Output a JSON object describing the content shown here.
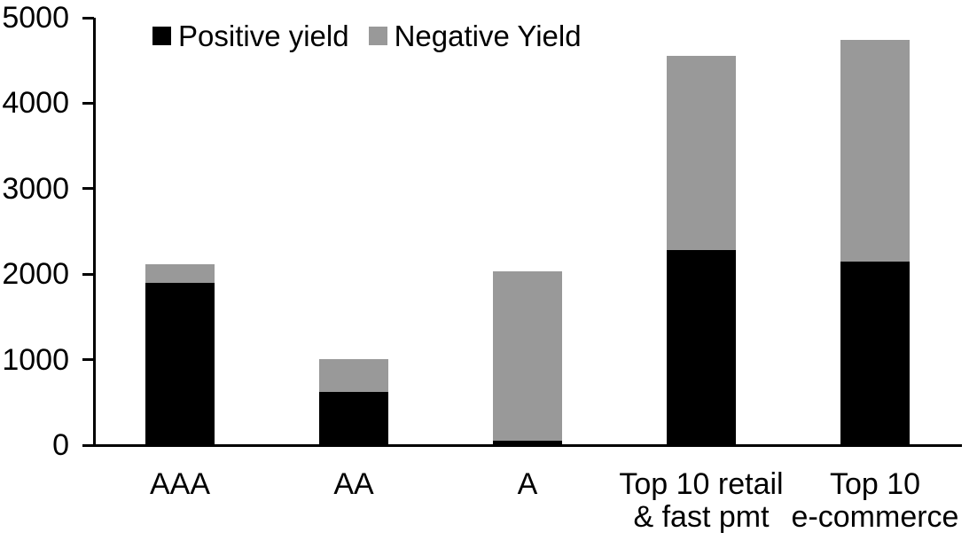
{
  "chart_data": {
    "type": "bar",
    "stacked": true,
    "title": "",
    "xlabel": "",
    "ylabel": "",
    "grid": false,
    "legend_position": "top-left",
    "categories": [
      "AAA",
      "AA",
      "A",
      "Top 10 retail\n& fast pmt",
      "Top 10\ne-commerce"
    ],
    "series": [
      {
        "name": "Positive yield",
        "color": "#000000",
        "values": [
          1900,
          620,
          50,
          2280,
          2150
        ]
      },
      {
        "name": "Negative Yield",
        "color": "#999999",
        "values": [
          220,
          390,
          1980,
          2270,
          2590
        ]
      }
    ],
    "totals": [
      2120,
      1010,
      2030,
      4550,
      4740
    ],
    "ylim": [
      0,
      5000
    ],
    "yticks": [
      0,
      1000,
      2000,
      3000,
      4000,
      5000
    ],
    "axis_color": "#000000",
    "text_color": "#000000"
  }
}
